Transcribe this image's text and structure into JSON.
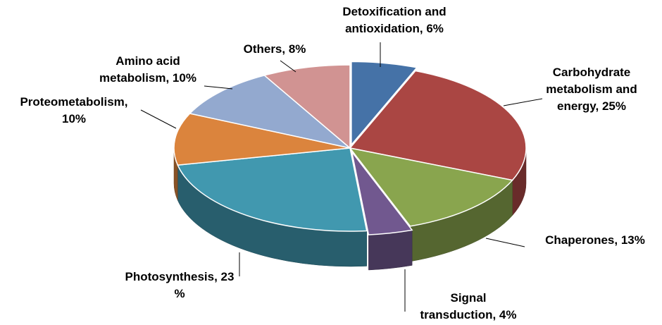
{
  "chart_data": {
    "type": "pie3d",
    "values": [
      6,
      25,
      13,
      4,
      23,
      10,
      10,
      8
    ],
    "value_labels": [
      "Detoxification and\nantioxidation, 6%",
      "Carbohydrate\nmetabolism and\nenergy, 25%",
      "Chaperones, 13%",
      "Signal\ntransduction, 4%",
      "Photosynthesis, 23\n%",
      "Proteometabolism,\n10%",
      "Amino acid\nmetabolism, 10%",
      "Others, 8%"
    ],
    "colors": [
      "#4572a7",
      "#aa4643",
      "#89a54e",
      "#71588f",
      "#4198af",
      "#db843d",
      "#93a9cf",
      "#d19392"
    ]
  }
}
